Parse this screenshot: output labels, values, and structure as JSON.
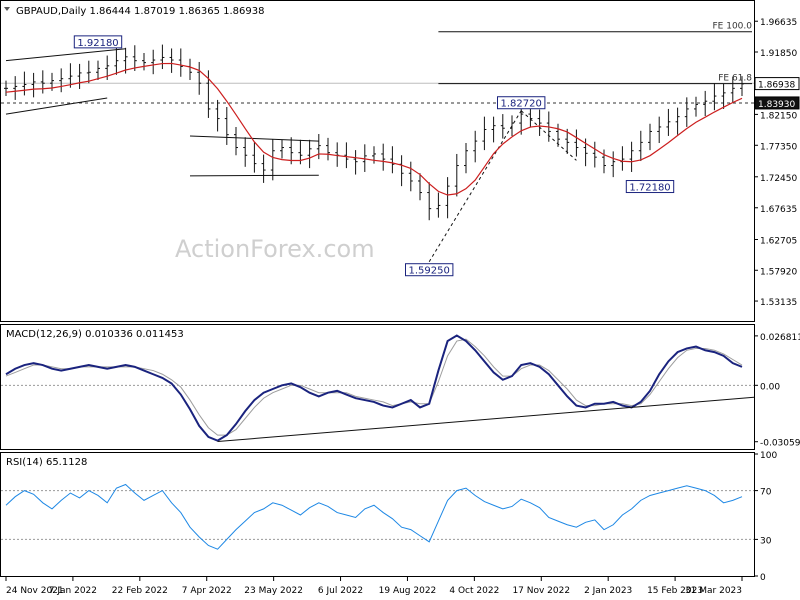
{
  "chart_data": [
    {
      "type": "candlestick",
      "panel": "price",
      "title": "GBPAUD,Daily  1.86444 1.87019 1.86365 1.86938",
      "watermark": "ActionForex.com",
      "ylim": [
        1.505,
        1.99
      ],
      "y_ticks": [
        "1.96635",
        "1.91850",
        "1.86938",
        "1.82150",
        "1.77350",
        "1.72450",
        "1.67635",
        "1.62705",
        "1.57920",
        "1.53135"
      ],
      "x_ticks": [
        "24 Nov 2021",
        "7 Jan 2022",
        "22 Feb 2022",
        "7 Apr 2022",
        "23 May 2022",
        "6 Jul 2022",
        "19 Aug 2022",
        "4 Oct 2022",
        "17 Nov 2022",
        "2 Jan 2023",
        "15 Feb 2023",
        "31 Mar 2023"
      ],
      "price_labels": [
        {
          "text": "1.86938",
          "price": 1.86938,
          "style": "current"
        },
        {
          "text": "1.83930",
          "price": 1.8393,
          "style": "level"
        }
      ],
      "annotations": [
        {
          "text": "1.92180",
          "date_index": 10,
          "price": 1.9218
        },
        {
          "text": "1.82720",
          "date_index": 56,
          "price": 1.8272
        },
        {
          "text": "1.72180",
          "date_index": 70,
          "price": 1.7218
        },
        {
          "text": "1.59250",
          "date_index": 46,
          "price": 1.5925
        }
      ],
      "fe_levels": [
        {
          "text": "FE 100.0",
          "price": 1.95,
          "from_index": 47
        },
        {
          "text": "FE 61.8",
          "price": 1.8693,
          "from_index": 47
        }
      ],
      "horizontal_dashed": {
        "price": 1.8393,
        "color": "#333333"
      },
      "horizontal_solid": {
        "price": 1.87,
        "color": "#bdbdbd"
      },
      "closes": [
        1.862,
        1.865,
        1.868,
        1.872,
        1.87,
        1.874,
        1.877,
        1.881,
        1.886,
        1.887,
        1.893,
        1.897,
        1.905,
        1.911,
        1.905,
        1.902,
        1.906,
        1.91,
        1.906,
        1.896,
        1.887,
        1.87,
        1.83,
        1.815,
        1.79,
        1.77,
        1.758,
        1.745,
        1.735,
        1.765,
        1.77,
        1.762,
        1.758,
        1.768,
        1.773,
        1.762,
        1.758,
        1.752,
        1.748,
        1.757,
        1.76,
        1.752,
        1.744,
        1.73,
        1.718,
        1.7,
        1.675,
        1.68,
        1.71,
        1.742,
        1.765,
        1.78,
        1.798,
        1.804,
        1.8,
        1.808,
        1.822,
        1.815,
        1.808,
        1.795,
        1.783,
        1.778,
        1.77,
        1.761,
        1.755,
        1.742,
        1.748,
        1.752,
        1.765,
        1.778,
        1.795,
        1.802,
        1.81,
        1.818,
        1.83,
        1.837,
        1.842,
        1.85,
        1.855,
        1.862,
        1.869
      ],
      "series": [
        {
          "name": "price",
          "color": "#111111"
        },
        {
          "name": "moving average",
          "color": "#cc1f1f"
        }
      ],
      "ma_color": "#cc1f1f",
      "bar_color": "#111111"
    },
    {
      "type": "line",
      "panel": "macd",
      "title": "MACD(12,26,9) 0.010336 0.011453",
      "ylim": [
        -0.034,
        0.03
      ],
      "y_ticks": [
        "0.026811",
        "0.00",
        "-0.030592"
      ],
      "zero_line": 0,
      "series": [
        {
          "name": "MACD",
          "color": "#1a237e",
          "values": [
            0.006,
            0.009,
            0.011,
            0.012,
            0.011,
            0.009,
            0.008,
            0.009,
            0.01,
            0.011,
            0.01,
            0.009,
            0.01,
            0.011,
            0.01,
            0.008,
            0.006,
            0.004,
            0.001,
            -0.005,
            -0.013,
            -0.022,
            -0.028,
            -0.03,
            -0.027,
            -0.021,
            -0.014,
            -0.008,
            -0.004,
            -0.002,
            0.0,
            0.001,
            -0.001,
            -0.004,
            -0.006,
            -0.004,
            -0.003,
            -0.005,
            -0.007,
            -0.008,
            -0.009,
            -0.011,
            -0.012,
            -0.01,
            -0.008,
            -0.012,
            -0.01,
            0.008,
            0.024,
            0.027,
            0.024,
            0.019,
            0.013,
            0.007,
            0.003,
            0.005,
            0.011,
            0.012,
            0.01,
            0.006,
            0.0,
            -0.006,
            -0.011,
            -0.012,
            -0.01,
            -0.01,
            -0.009,
            -0.011,
            -0.012,
            -0.009,
            -0.003,
            0.006,
            0.013,
            0.018,
            0.02,
            0.021,
            0.019,
            0.018,
            0.016,
            0.012,
            0.01
          ]
        },
        {
          "name": "Signal",
          "color": "#9e9e9e",
          "values": [
            0.005,
            0.007,
            0.009,
            0.011,
            0.011,
            0.01,
            0.009,
            0.009,
            0.01,
            0.01,
            0.01,
            0.01,
            0.01,
            0.01,
            0.01,
            0.009,
            0.008,
            0.006,
            0.003,
            -0.001,
            -0.008,
            -0.016,
            -0.023,
            -0.027,
            -0.027,
            -0.024,
            -0.018,
            -0.012,
            -0.007,
            -0.004,
            -0.002,
            0.0,
            0.0,
            -0.002,
            -0.004,
            -0.004,
            -0.004,
            -0.004,
            -0.006,
            -0.007,
            -0.008,
            -0.009,
            -0.011,
            -0.01,
            -0.009,
            -0.01,
            -0.01,
            0.002,
            0.016,
            0.024,
            0.025,
            0.021,
            0.016,
            0.01,
            0.005,
            0.005,
            0.009,
            0.011,
            0.011,
            0.008,
            0.003,
            -0.002,
            -0.008,
            -0.011,
            -0.011,
            -0.01,
            -0.01,
            -0.01,
            -0.011,
            -0.01,
            -0.005,
            0.002,
            0.009,
            0.015,
            0.019,
            0.02,
            0.02,
            0.019,
            0.017,
            0.014,
            0.011
          ]
        }
      ],
      "trendline_color": "#111111"
    },
    {
      "type": "line",
      "panel": "rsi",
      "title": "RSI(14) 65.1128",
      "ylim": [
        0,
        100
      ],
      "y_ticks": [
        "100",
        "70",
        "30",
        "0"
      ],
      "ref_levels": [
        70,
        30
      ],
      "series": [
        {
          "name": "RSI",
          "color": "#1e88e5",
          "values": [
            58,
            65,
            70,
            67,
            60,
            55,
            62,
            68,
            64,
            70,
            66,
            60,
            72,
            75,
            68,
            62,
            66,
            70,
            60,
            52,
            40,
            32,
            25,
            22,
            30,
            38,
            45,
            52,
            55,
            60,
            58,
            54,
            50,
            56,
            60,
            57,
            52,
            50,
            48,
            55,
            58,
            52,
            47,
            40,
            38,
            33,
            28,
            45,
            62,
            70,
            72,
            66,
            61,
            58,
            55,
            57,
            63,
            60,
            56,
            48,
            45,
            42,
            40,
            44,
            46,
            38,
            42,
            50,
            55,
            62,
            66,
            68,
            70,
            72,
            74,
            72,
            70,
            66,
            60,
            62,
            65
          ]
        }
      ]
    }
  ]
}
